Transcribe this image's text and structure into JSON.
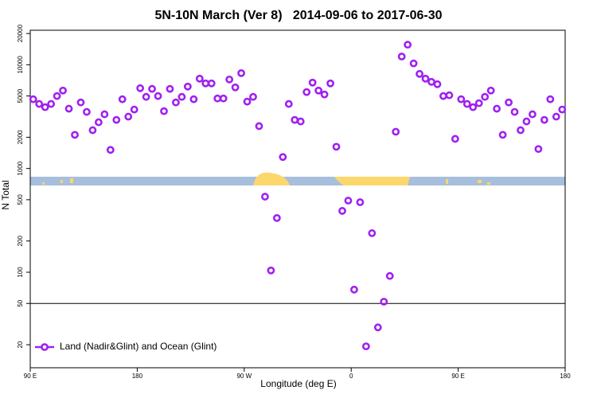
{
  "chart_data": {
    "type": "scatter",
    "title": "5N-10N March (Ver 8)   2014-09-06 to 2017-06-30",
    "xlabel": "Longitude (deg E)",
    "ylabel": "N Total",
    "log_y": true,
    "legend": "bottom-left",
    "hline": 50,
    "xlim": [
      90,
      540
    ],
    "xticks": [
      {
        "value": 90,
        "label": "90 E"
      },
      {
        "value": 180,
        "label": "180"
      },
      {
        "value": 270,
        "label": "90 W"
      },
      {
        "value": 360,
        "label": "0"
      },
      {
        "value": 450,
        "label": "90 E"
      },
      {
        "value": 540,
        "label": "180"
      }
    ],
    "ylim": [
      12,
      21500
    ],
    "yticks": [
      20,
      50,
      100,
      200,
      500,
      1000,
      2000,
      5000,
      10000,
      20000
    ],
    "x": [
      92.5,
      97.5,
      102.5,
      107.5,
      112.5,
      117.5,
      122.5,
      127.5,
      132.5,
      137.5,
      142.5,
      147.5,
      152.5,
      157.5,
      162.5,
      167.5,
      172.5,
      177.5,
      182.5,
      187.5,
      192.5,
      197.5,
      202.5,
      207.5,
      212.5,
      217.5,
      222.5,
      227.5,
      232.5,
      237.5,
      242.5,
      247.5,
      252.5,
      257.5,
      262.5,
      267.5,
      272.5,
      277.5,
      282.5,
      287.5,
      292.5,
      297.5,
      302.5,
      307.5,
      312.5,
      317.5,
      322.5,
      327.5,
      332.5,
      337.5,
      342.5,
      347.5,
      352.5,
      357.5,
      362.5,
      367.5,
      372.5,
      377.5,
      382.5,
      387.5,
      392.5,
      397.5,
      402.5,
      407.5,
      412.5,
      417.5,
      422.5,
      427.5,
      432.5,
      437.5,
      442.5,
      447.5,
      452.5,
      457.5,
      462.5,
      467.5,
      472.5,
      477.5,
      482.5,
      487.5,
      492.5,
      497.5,
      502.5,
      507.5,
      512.5,
      517.5,
      522.5,
      527.5,
      532.5,
      537.5
    ],
    "series": [
      {
        "name": "Land (Nadir&Glint) and Ocean (Glint)",
        "color": "#a020f0",
        "values": [
          4650,
          4190,
          3900,
          4190,
          4990,
          5640,
          3770,
          2110,
          4330,
          3510,
          2340,
          2790,
          3330,
          1510,
          2940,
          4650,
          3160,
          3700,
          5940,
          4900,
          5850,
          4990,
          3570,
          5850,
          4330,
          4900,
          6160,
          4650,
          7340,
          6610,
          6610,
          4730,
          4730,
          7210,
          6050,
          8300,
          4410,
          4900,
          2560,
          535,
          104,
          333,
          1290,
          4190,
          2940,
          2840,
          5450,
          6730,
          5640,
          5170,
          6610,
          1620,
          390,
          490,
          68,
          473,
          19.3,
          238,
          29.4,
          52,
          92,
          2260,
          12000,
          15600,
          10300,
          8160,
          7340,
          6840,
          6490,
          4990,
          5080,
          1930,
          4650,
          4190,
          3900,
          4260,
          4900,
          5640,
          3770,
          2110,
          4330,
          3510,
          2340,
          2840,
          3330,
          1540,
          2940,
          4650,
          3160,
          3700
        ]
      }
    ]
  }
}
